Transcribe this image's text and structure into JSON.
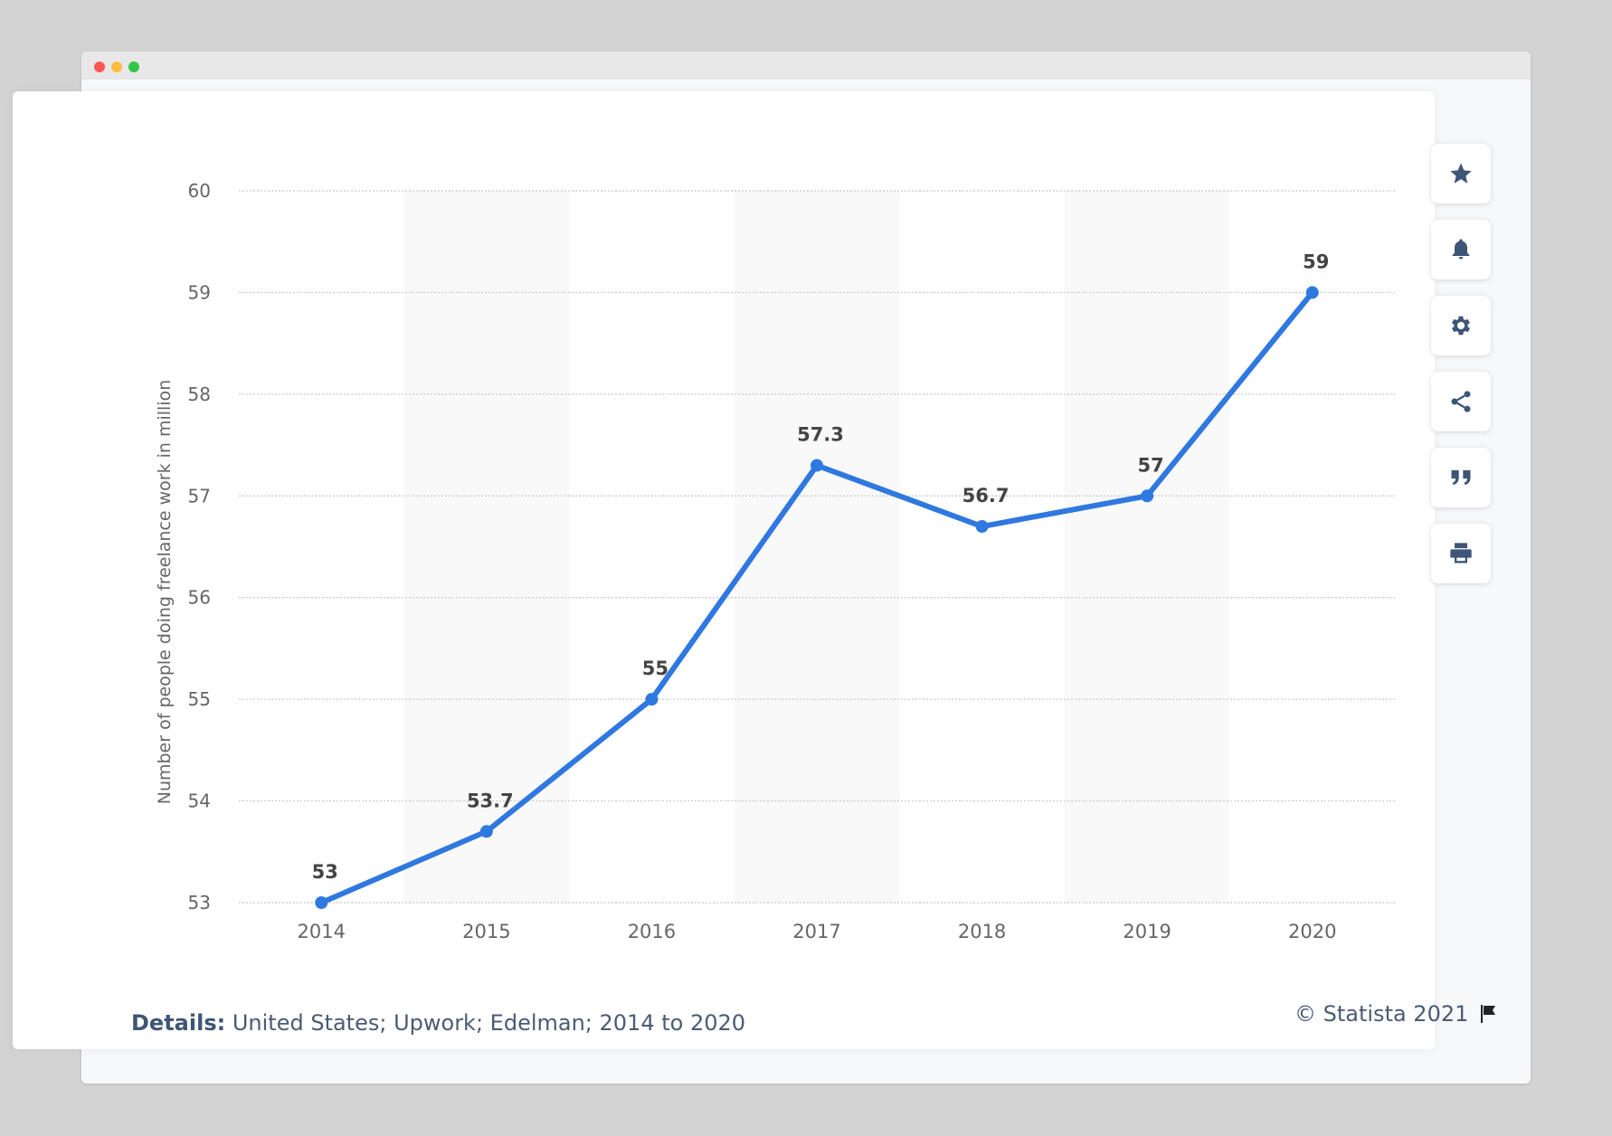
{
  "toolbar": {
    "icons": [
      "star-icon",
      "bell-icon",
      "gear-icon",
      "share-icon",
      "quote-icon",
      "print-icon"
    ]
  },
  "footer": {
    "details_label": "Details:",
    "details_text": "United States; Upwork; Edelman; 2014 to 2020",
    "copyright": "© Statista 2021"
  },
  "chart_data": {
    "type": "line",
    "categories": [
      "2014",
      "2015",
      "2016",
      "2017",
      "2018",
      "2019",
      "2020"
    ],
    "series": [
      {
        "values": [
          53,
          53.7,
          55,
          57.3,
          56.7,
          57,
          59
        ],
        "color": "#2f78e0"
      }
    ],
    "value_labels": [
      "53",
      "53.7",
      "55",
      "57.3",
      "56.7",
      "57",
      "59"
    ],
    "ylabel": "Number of people doing freelance work in million",
    "ylim": [
      53,
      60
    ],
    "yticks": [
      53,
      54,
      55,
      56,
      57,
      58,
      59,
      60
    ],
    "grid": true,
    "alternating_bands": true
  }
}
